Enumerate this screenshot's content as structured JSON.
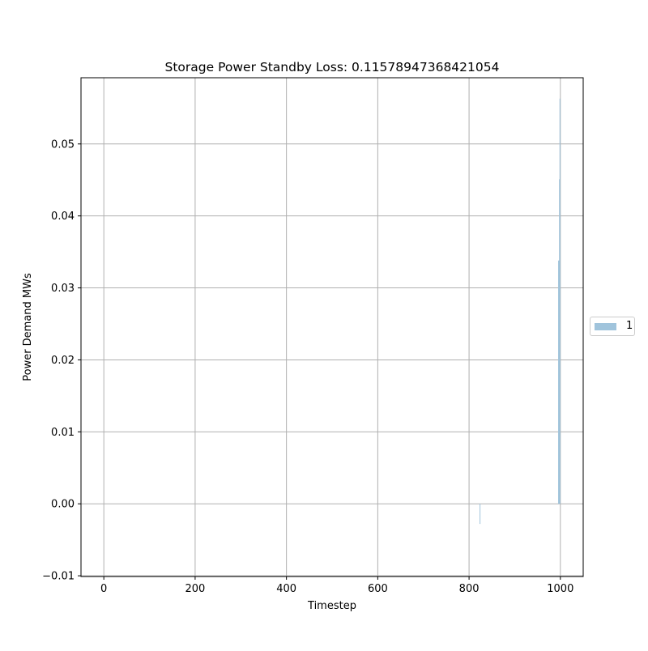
{
  "chart_data": {
    "type": "bar",
    "title": "Storage Power Standby Loss: 0.11578947368421054",
    "xlabel": "Timestep",
    "ylabel": "Power Demand MWs",
    "xlim": [
      -50,
      1050
    ],
    "ylim": [
      -0.0101,
      0.0592
    ],
    "xticks": [
      0,
      200,
      400,
      600,
      800,
      1000
    ],
    "yticks": [
      -0.01,
      0.0,
      0.01,
      0.02,
      0.03,
      0.04,
      0.05
    ],
    "ytick_labels": [
      "−0.01",
      "0.00",
      "0.01",
      "0.02",
      "0.03",
      "0.04",
      "0.05"
    ],
    "grid": true,
    "legend_position": "center-right, outside plot",
    "series": [
      {
        "name": "1",
        "color": "#a0c4dc",
        "x": [
          824,
          996,
          997,
          998,
          999
        ],
        "values": [
          -0.0028,
          0.0338,
          0.0338,
          0.0451,
          0.0563
        ]
      }
    ]
  }
}
